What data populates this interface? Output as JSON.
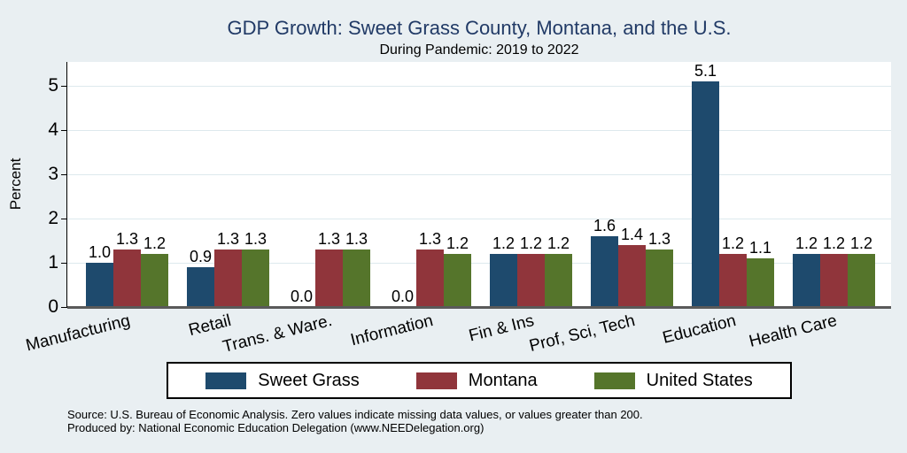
{
  "title": "GDP Growth: Sweet Grass County, Montana, and the U.S.",
  "subtitle": "During Pandemic: 2019 to 2022",
  "y_axis_title": "Percent",
  "source_line1": "Source: U.S. Bureau of Economic Analysis. Zero values indicate missing data values, or values greater than 200.",
  "source_line2": "Produced by: National Economic Education Delegation (www.NEEDelegation.org)",
  "colors": {
    "figure_background": "#e9eff2",
    "plot_background": "#ffffff",
    "gridline": "#dde9ed",
    "x_axis_line": "#5a5a5a",
    "title_text": "#213a66",
    "sweet_grass": "#1e4a6d",
    "montana": "#90353b",
    "united_states": "#55752b"
  },
  "chart_data": {
    "type": "bar",
    "title": "GDP Growth: Sweet Grass County, Montana, and the U.S.",
    "subtitle": "During Pandemic: 2019 to 2022",
    "ylabel": "Percent",
    "ylim": [
      0,
      5.54
    ],
    "yticks": [
      0,
      1,
      2,
      3,
      4,
      5
    ],
    "grid": true,
    "legend_position": "bottom",
    "bar_label_format": "one decimal place above each bar; 0.0 shown at baseline for missing bars",
    "categories": [
      "Manufacturing",
      "Retail",
      "Trans. & Ware.",
      "Information",
      "Fin & Ins",
      "Prof, Sci, Tech",
      "Education",
      "Health Care"
    ],
    "series": [
      {
        "name": "Sweet Grass",
        "color": "#1e4a6d",
        "values": [
          1.0,
          0.9,
          0.0,
          0.0,
          1.2,
          1.6,
          5.1,
          1.2
        ]
      },
      {
        "name": "Montana",
        "color": "#90353b",
        "values": [
          1.3,
          1.3,
          1.3,
          1.3,
          1.2,
          1.4,
          1.2,
          1.2
        ]
      },
      {
        "name": "United States",
        "color": "#55752b",
        "values": [
          1.2,
          1.3,
          1.3,
          1.2,
          1.2,
          1.3,
          1.1,
          1.2
        ]
      }
    ]
  }
}
